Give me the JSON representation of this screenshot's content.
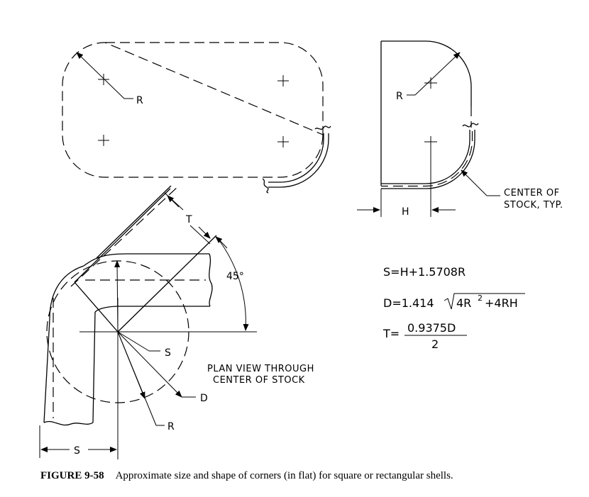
{
  "labels": {
    "r_top_left": "R",
    "r_top_right": "R",
    "h": "H",
    "t": "T",
    "angle": "45°",
    "s_dim": "S",
    "d_dim": "D",
    "r_bottom": "R",
    "s_bottom": "S"
  },
  "notes": {
    "center_line1": "CENTER OF",
    "center_line2": "STOCK, TYP.",
    "plan_line1": "PLAN VIEW THROUGH",
    "plan_line2": "CENTER OF STOCK"
  },
  "formulas": {
    "s": "S=H+1.5708R",
    "d_prefix": "D=1.414",
    "d_radicand_a": "4R",
    "d_exp": "2",
    "d_radicand_b": "+4RH",
    "t_prefix": "T=",
    "t_numerator": "0.9375D",
    "t_denominator": "2"
  },
  "caption": {
    "figure": "FIGURE 9-58",
    "text": "Approximate size and shape of corners (in flat) for square or rectangular shells."
  }
}
